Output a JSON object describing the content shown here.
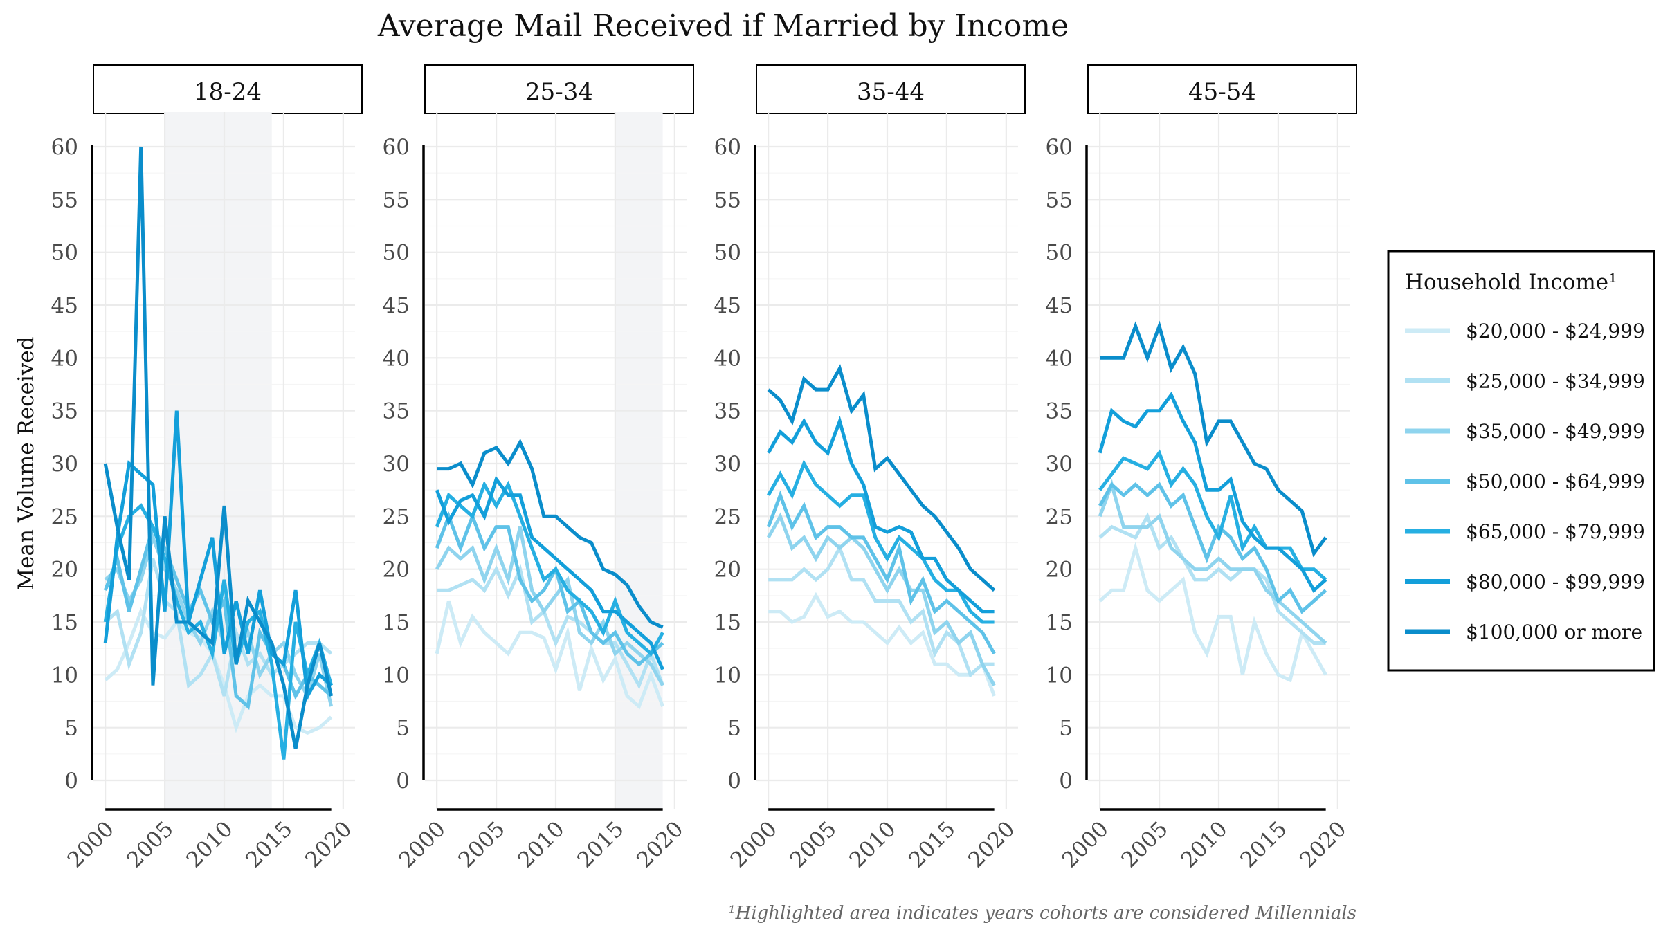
{
  "chart_data": {
    "type": "line",
    "title": "Average Mail Received if Married by Income",
    "ylabel": "Mean Volume Received",
    "xlabel": "",
    "xlim": [
      1999,
      2021
    ],
    "ylim": [
      0,
      60
    ],
    "x_ticks": [
      2000,
      2005,
      2010,
      2015,
      2020
    ],
    "y_ticks": [
      0,
      5,
      10,
      15,
      20,
      25,
      30,
      35,
      40,
      45,
      50,
      55,
      60
    ],
    "grid": true,
    "legend": {
      "title": "Household Income¹",
      "position": "right"
    },
    "footnote": "¹Highlighted area indicates years cohorts are considered Millennials",
    "series_styles": [
      {
        "name": "$20,000 - $24,999",
        "color": "#cdebf6"
      },
      {
        "name": "$25,000 - $34,999",
        "color": "#b1e1f3"
      },
      {
        "name": "$35,000 - $49,999",
        "color": "#8fd4ee"
      },
      {
        "name": "$50,000 - $64,999",
        "color": "#5fc2e8"
      },
      {
        "name": "$65,000 - $79,999",
        "color": "#26afe2"
      },
      {
        "name": "$80,000 - $99,999",
        "color": "#139fda"
      },
      {
        "name": "$100,000 or more",
        "color": "#0a8dcb"
      }
    ],
    "panels": [
      {
        "label": "18-24",
        "highlight": [
          2005,
          2014
        ],
        "x": [
          2000,
          2001,
          2002,
          2003,
          2004,
          2005,
          2006,
          2007,
          2008,
          2009,
          2010,
          2011,
          2012,
          2013,
          2014,
          2015,
          2016,
          2017,
          2018,
          2019
        ],
        "series": [
          {
            "name": "$20,000 - $24,999",
            "values": [
              9.5,
              10.5,
              13,
              16,
              14,
              13.5,
              15,
              14,
              13.5,
              12,
              9,
              5,
              8,
              9,
              8,
              8,
              5,
              4.5,
              5,
              6
            ]
          },
          {
            "name": "$25,000 - $34,999",
            "values": [
              15,
              16,
              11,
              14,
              21,
              17,
              16,
              9,
              10,
              12,
              8,
              14,
              11,
              12,
              10,
              11,
              12,
              13,
              13,
              12
            ]
          },
          {
            "name": "$35,000 - $49,999",
            "values": [
              19,
              20,
              17,
              19,
              23,
              20,
              18,
              15,
              13,
              16,
              13,
              12,
              14,
              10,
              12,
              13,
              10,
              8,
              12,
              7
            ]
          },
          {
            "name": "$50,000 - $64,999",
            "values": [
              18,
              21,
              16,
              20,
              24,
              22,
              19,
              16,
              18,
              15,
              17,
              8,
              7,
              14,
              12,
              11,
              8,
              10,
              9,
              8
            ]
          },
          {
            "name": "$65,000 - $79,999",
            "values": [
              15,
              22,
              25,
              26,
              24,
              21,
              17,
              14,
              15,
              12,
              19,
              11,
              15,
              16,
              11,
              2,
              15,
              10,
              13,
              9
            ]
          },
          {
            "name": "$80,000 - $99,999",
            "values": [
              13,
              23,
              30,
              29,
              28,
              16,
              35,
              15,
              19,
              23,
              12,
              17,
              12,
              18,
              12,
              11,
              18,
              8,
              10,
              9
            ]
          },
          {
            "name": "$100,000 or more",
            "values": [
              30,
              24,
              19,
              60,
              9,
              25,
              15,
              15,
              14,
              13,
              26,
              11,
              17,
              15,
              13,
              9,
              3,
              9,
              13,
              8
            ]
          }
        ]
      },
      {
        "label": "25-34",
        "highlight": [
          2015,
          2019
        ],
        "x": [
          2000,
          2001,
          2002,
          2003,
          2004,
          2005,
          2006,
          2007,
          2008,
          2009,
          2010,
          2011,
          2012,
          2013,
          2014,
          2015,
          2016,
          2017,
          2018,
          2019
        ],
        "series": [
          {
            "name": "$20,000 - $24,999",
            "values": [
              12,
              17,
              13,
              15.5,
              14,
              13,
              12,
              14,
              14,
              13.5,
              10.5,
              14,
              8.5,
              12.5,
              9.5,
              11.5,
              8,
              7,
              10,
              7
            ]
          },
          {
            "name": "$25,000 - $34,999",
            "values": [
              18,
              18,
              18.5,
              19,
              18,
              20,
              17.5,
              20,
              15,
              16,
              13,
              15.5,
              15,
              14,
              13,
              13,
              11,
              9,
              12,
              9
            ]
          },
          {
            "name": "$35,000 - $49,999",
            "values": [
              20,
              22,
              21,
              22,
              19,
              22,
              19,
              24,
              18,
              16,
              17.5,
              19,
              14,
              13,
              15,
              12,
              13,
              12,
              11,
              9
            ]
          },
          {
            "name": "$50,000 - $64,999",
            "values": [
              22,
              25,
              22,
              25,
              22,
              24,
              24,
              19,
              17,
              18,
              20,
              16,
              17,
              14,
              13,
              14,
              12,
              11,
              12,
              13
            ]
          },
          {
            "name": "$65,000 - $79,999",
            "values": [
              24,
              27,
              26,
              25,
              28,
              26,
              28,
              25,
              22,
              19,
              20,
              18,
              17,
              16,
              14,
              17,
              14,
              13,
              12,
              14
            ]
          },
          {
            "name": "$80,000 - $99,999",
            "values": [
              27.5,
              24.5,
              26.5,
              27,
              25,
              28.5,
              27,
              27,
              23,
              22,
              21,
              20,
              19,
              18,
              16,
              16,
              15,
              14,
              13,
              10.5
            ]
          },
          {
            "name": "$100,000 or more",
            "values": [
              29.5,
              29.5,
              30,
              28,
              31,
              31.5,
              30,
              32,
              29.5,
              25,
              25,
              24,
              23,
              22.5,
              20,
              19.5,
              18.5,
              16.5,
              15,
              14.5
            ]
          }
        ]
      },
      {
        "label": "35-44",
        "highlight": null,
        "x": [
          2000,
          2001,
          2002,
          2003,
          2004,
          2005,
          2006,
          2007,
          2008,
          2009,
          2010,
          2011,
          2012,
          2013,
          2014,
          2015,
          2016,
          2017,
          2018,
          2019
        ],
        "series": [
          {
            "name": "$20,000 - $24,999",
            "values": [
              16,
              16,
              15,
              15.5,
              17.5,
              15.5,
              16,
              15,
              15,
              14,
              13,
              14.5,
              13,
              14,
              11,
              11,
              10,
              10,
              11,
              8
            ]
          },
          {
            "name": "$25,000 - $34,999",
            "values": [
              19,
              19,
              19,
              20,
              19,
              20,
              22,
              19,
              19,
              17,
              17,
              17,
              15,
              16,
              12,
              14,
              13,
              10,
              11,
              11
            ]
          },
          {
            "name": "$35,000 - $49,999",
            "values": [
              23,
              25,
              22,
              23,
              21,
              23,
              22,
              23,
              22,
              20,
              18,
              20,
              18,
              18,
              14,
              15,
              13,
              14,
              11,
              9
            ]
          },
          {
            "name": "$50,000 - $64,999",
            "values": [
              24,
              27,
              24,
              26,
              23,
              24,
              24,
              23,
              23,
              21,
              19,
              22,
              17,
              19,
              16,
              17,
              16,
              15,
              14,
              12
            ]
          },
          {
            "name": "$65,000 - $79,999",
            "values": [
              27,
              29,
              27,
              30,
              28,
              27,
              26,
              27,
              27,
              23,
              21,
              23,
              22,
              21,
              19,
              18,
              18,
              16,
              15,
              15
            ]
          },
          {
            "name": "$80,000 - $99,999",
            "values": [
              31,
              33,
              32,
              34,
              32,
              31,
              34,
              30,
              28,
              24,
              23.5,
              24,
              23.5,
              21,
              21,
              19,
              18,
              17,
              16,
              16
            ]
          },
          {
            "name": "$100,000 or more",
            "values": [
              37,
              36,
              34,
              38,
              37,
              37,
              39,
              35,
              36.5,
              29.5,
              30.5,
              29,
              27.5,
              26,
              25,
              23.5,
              22,
              20,
              19,
              18
            ]
          }
        ]
      },
      {
        "label": "45-54",
        "highlight": null,
        "x": [
          2000,
          2001,
          2002,
          2003,
          2004,
          2005,
          2006,
          2007,
          2008,
          2009,
          2010,
          2011,
          2012,
          2013,
          2014,
          2015,
          2016,
          2017,
          2018,
          2019
        ],
        "series": [
          {
            "name": "$20,000 - $24,999",
            "values": [
              17,
              18,
              18,
              22,
              18,
              17,
              18,
              19,
              14,
              12,
              15.5,
              15.5,
              10,
              15,
              12,
              10,
              9.5,
              14,
              12,
              10
            ]
          },
          {
            "name": "$25,000 - $34,999",
            "values": [
              23,
              24,
              23.5,
              23,
              25,
              22,
              23,
              21,
              19,
              19,
              20,
              19,
              20,
              20,
              19,
              16,
              15,
              14,
              13,
              13
            ]
          },
          {
            "name": "$35,000 - $49,999",
            "values": [
              25,
              28,
              24,
              24,
              24,
              25,
              22,
              21,
              20,
              20,
              21,
              20,
              20,
              20,
              18,
              17,
              16,
              15,
              14,
              13
            ]
          },
          {
            "name": "$50,000 - $64,999",
            "values": [
              26,
              28,
              27,
              28,
              27,
              28,
              26,
              27,
              24,
              21,
              24,
              23,
              21,
              22,
              20,
              17,
              18,
              16,
              17,
              18
            ]
          },
          {
            "name": "$65,000 - $79,999",
            "values": [
              27.5,
              29,
              30.5,
              30,
              29.5,
              31,
              28,
              29.5,
              28,
              25,
              23,
              27,
              22,
              24,
              22,
              22,
              22,
              20,
              20,
              19
            ]
          },
          {
            "name": "$80,000 - $99,999",
            "values": [
              31,
              35,
              34,
              33.5,
              35,
              35,
              36.5,
              34,
              32,
              27.5,
              27.5,
              28.5,
              24.5,
              23,
              22,
              22,
              21,
              20,
              18,
              19
            ]
          },
          {
            "name": "$100,000 or more",
            "values": [
              40,
              40,
              40,
              43,
              40,
              43,
              39,
              41,
              38.5,
              32,
              34,
              34,
              32,
              30,
              29.5,
              27.5,
              26.5,
              25.5,
              21.5,
              23
            ]
          }
        ]
      }
    ]
  }
}
